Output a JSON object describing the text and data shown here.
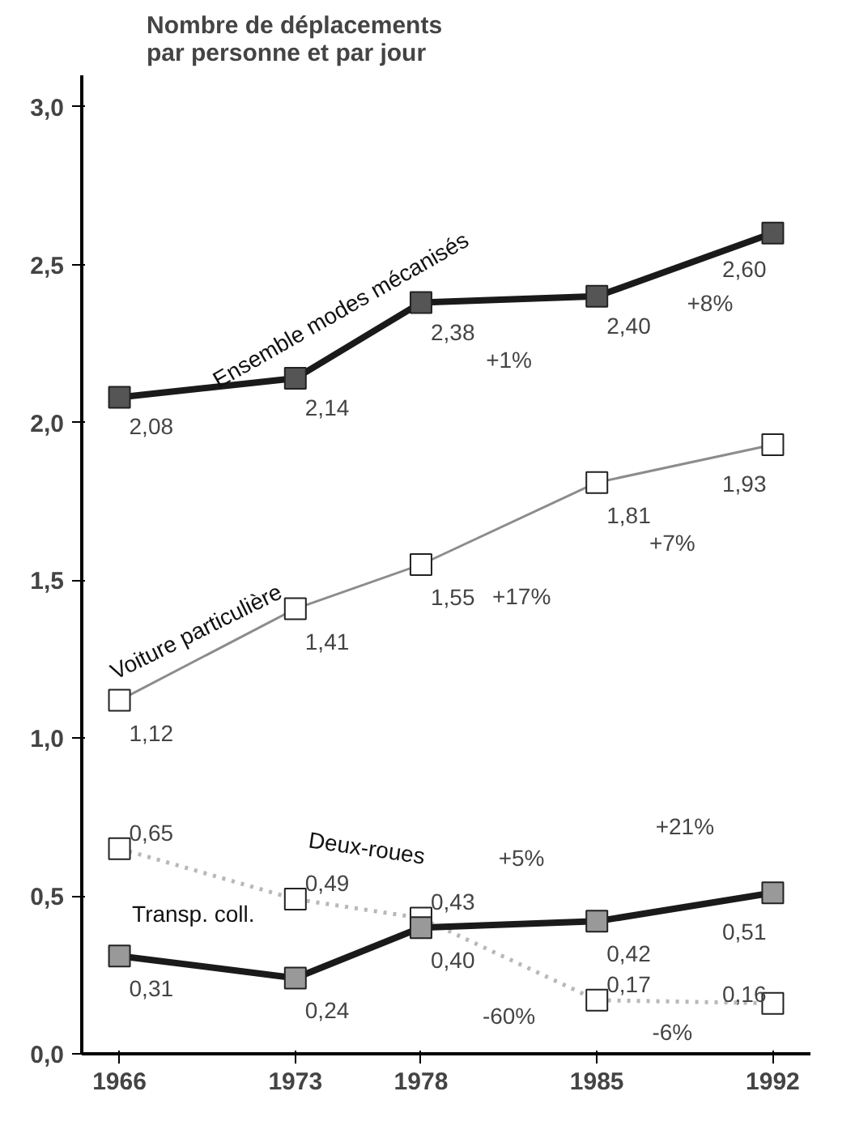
{
  "chart_data": {
    "type": "line",
    "ylabel": "Nombre de déplacements\npar personne et par jour",
    "x": [
      1966,
      1973,
      1978,
      1985,
      1992
    ],
    "xlim": [
      1964.5,
      1993.5
    ],
    "xticks": [
      1966,
      1973,
      1978,
      1985,
      1992
    ],
    "ylim": [
      0,
      3.1
    ],
    "yticks": [
      {
        "value": 0,
        "label": "0,0"
      },
      {
        "value": 0.5,
        "label": "0,5"
      },
      {
        "value": 1,
        "label": "1,0"
      },
      {
        "value": 1.5,
        "label": "1,5"
      },
      {
        "value": 2,
        "label": "2,0"
      },
      {
        "value": 2.5,
        "label": "2,5"
      },
      {
        "value": 3,
        "label": "3,0"
      }
    ],
    "grid": false,
    "marker": "square",
    "series": [
      {
        "name": "Ensemble modes mécanisés",
        "color": "#1a1a1a",
        "values": [
          2.08,
          2.14,
          2.38,
          2.4,
          2.6
        ],
        "value_labels": [
          "2,08",
          "2,14",
          "2,38",
          "2,40",
          "2,60"
        ],
        "line_style": "solid"
      },
      {
        "name": "Voiture particulière",
        "color": "#8c8c8c",
        "values": [
          1.12,
          1.41,
          1.55,
          1.81,
          1.93
        ],
        "value_labels": [
          "1,12",
          "1,41",
          "1,55",
          "1,81",
          "1,93"
        ],
        "line_style": "solid"
      },
      {
        "name": "Deux-roues",
        "color": "#b8b8b8",
        "values": [
          0.65,
          0.49,
          0.43,
          0.17,
          0.16
        ],
        "value_labels": [
          "0,65",
          "0,49",
          "0,43",
          "0,17",
          "0,16"
        ],
        "line_style": "dotted"
      },
      {
        "name": "Transp. coll.",
        "color": "#1a1a1a",
        "values": [
          0.31,
          0.24,
          0.4,
          0.42,
          0.51
        ],
        "value_labels": [
          "0,31",
          "0,24",
          "0,40",
          "0,42",
          "0,51"
        ],
        "line_style": "solid"
      }
    ],
    "annotations": [
      "+1%",
      "+8%",
      "+17%",
      "+7%",
      "+5%",
      "+21%",
      "-60%",
      "-6%"
    ]
  }
}
